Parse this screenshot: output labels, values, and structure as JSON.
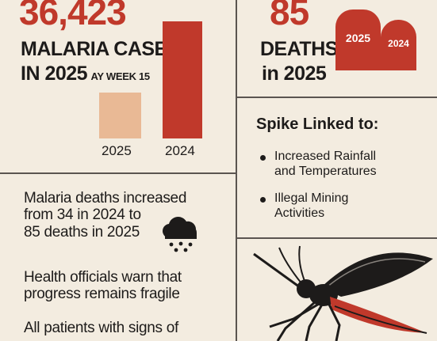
{
  "cases": {
    "number": "36,423",
    "label_line1": "MALARIA CASES",
    "label_line2": "IN 2025",
    "label_suffix": "AY WEEK 15",
    "bars": [
      {
        "label": "2025",
        "color": "#e9b995"
      },
      {
        "label": "2024",
        "color": "#c0392b"
      }
    ]
  },
  "deaths": {
    "number": "85",
    "label_line1": "DEATHS",
    "label_line2": "in 2025",
    "tombstones": [
      {
        "label": "2025"
      },
      {
        "label": "2024"
      }
    ]
  },
  "spike": {
    "title": "Spike Linked to:",
    "items": [
      {
        "text_line1": "Increased Rainfall",
        "text_line2": "and Temperatures"
      },
      {
        "text_line1": "Illegal Mining",
        "text_line2": "Activities"
      }
    ]
  },
  "notes": {
    "para1_line1": "Malaria deaths increased",
    "para1_line2": "from 34 in 2024 to",
    "para1_line3": "85 deaths in 2025",
    "para2_line1": "Health officials warn that",
    "para2_line2": "progress remains fragile",
    "para3_line1": "All patients with signs of"
  },
  "icons": {
    "weather": "rain-cloud-icon",
    "illustration": "mosquito-icon"
  },
  "colors": {
    "accent": "#c0392b",
    "light_bar": "#e9b995",
    "background": "#f3ece0"
  }
}
